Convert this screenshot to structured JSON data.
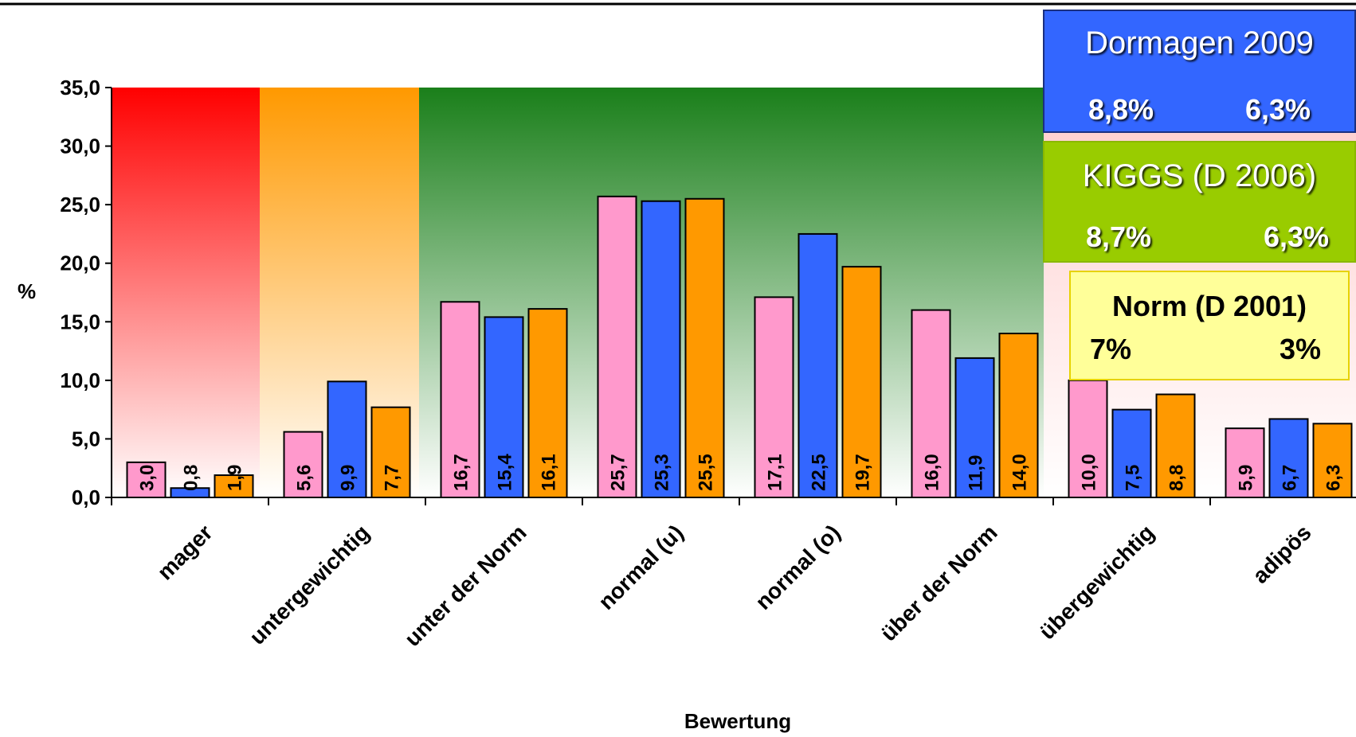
{
  "chart_data": {
    "type": "bar",
    "categories": [
      "mager",
      "untergewichtig",
      "unter der Norm",
      "normal (u)",
      "normal (o)",
      "über der Norm",
      "übergewichtig",
      "adipös"
    ],
    "series": [
      {
        "color": "#ff99cc",
        "values": [
          3.0,
          5.6,
          16.7,
          25.7,
          17.1,
          16.0,
          10.0,
          5.9
        ]
      },
      {
        "color": "#3366ff",
        "values": [
          0.8,
          9.9,
          15.4,
          25.3,
          22.5,
          11.9,
          7.5,
          6.7
        ]
      },
      {
        "color": "#ff9900",
        "values": [
          1.9,
          7.7,
          16.1,
          25.5,
          19.7,
          14.0,
          8.8,
          6.3
        ]
      }
    ],
    "data_labels": [
      [
        "3,0",
        "5,6",
        "16,7",
        "25,7",
        "17,1",
        "16,0",
        "10,0",
        "5,9"
      ],
      [
        "0,8",
        "9,9",
        "15,4",
        "25,3",
        "22,5",
        "11,9",
        "7,5",
        "6,7"
      ],
      [
        "1,9",
        "7,7",
        "16,1",
        "25,5",
        "19,7",
        "14,0",
        "8,8",
        "6,3"
      ]
    ],
    "ylim": [
      0,
      35
    ],
    "yticks": [
      0,
      5,
      10,
      15,
      20,
      25,
      30,
      35
    ],
    "ytick_labels": [
      "0,0",
      "5,0",
      "10,0",
      "15,0",
      "20,0",
      "25,0",
      "30,0",
      "35,0"
    ],
    "ylabel": "%",
    "xlabel": "Bewertung",
    "grid": false,
    "background_zones": [
      {
        "categories": [
          0
        ],
        "color": "#ff0000"
      },
      {
        "categories": [
          1
        ],
        "color": "#ff9900"
      },
      {
        "categories": [
          2,
          3,
          4
        ],
        "color": "#1a7f1a"
      }
    ]
  },
  "legend_boxes": {
    "dormagen": {
      "title": "Dormagen 2009",
      "left": "8,8%",
      "right": "6,3%",
      "color": "#3366ff"
    },
    "kiggs": {
      "title": "KIGGS (D 2006)",
      "left": "8,7%",
      "right": "6,3%",
      "color": "#99cc00"
    },
    "norm": {
      "title": "Norm (D 2001)",
      "left": "7%",
      "right": "3%",
      "color": "#ffff99"
    }
  }
}
